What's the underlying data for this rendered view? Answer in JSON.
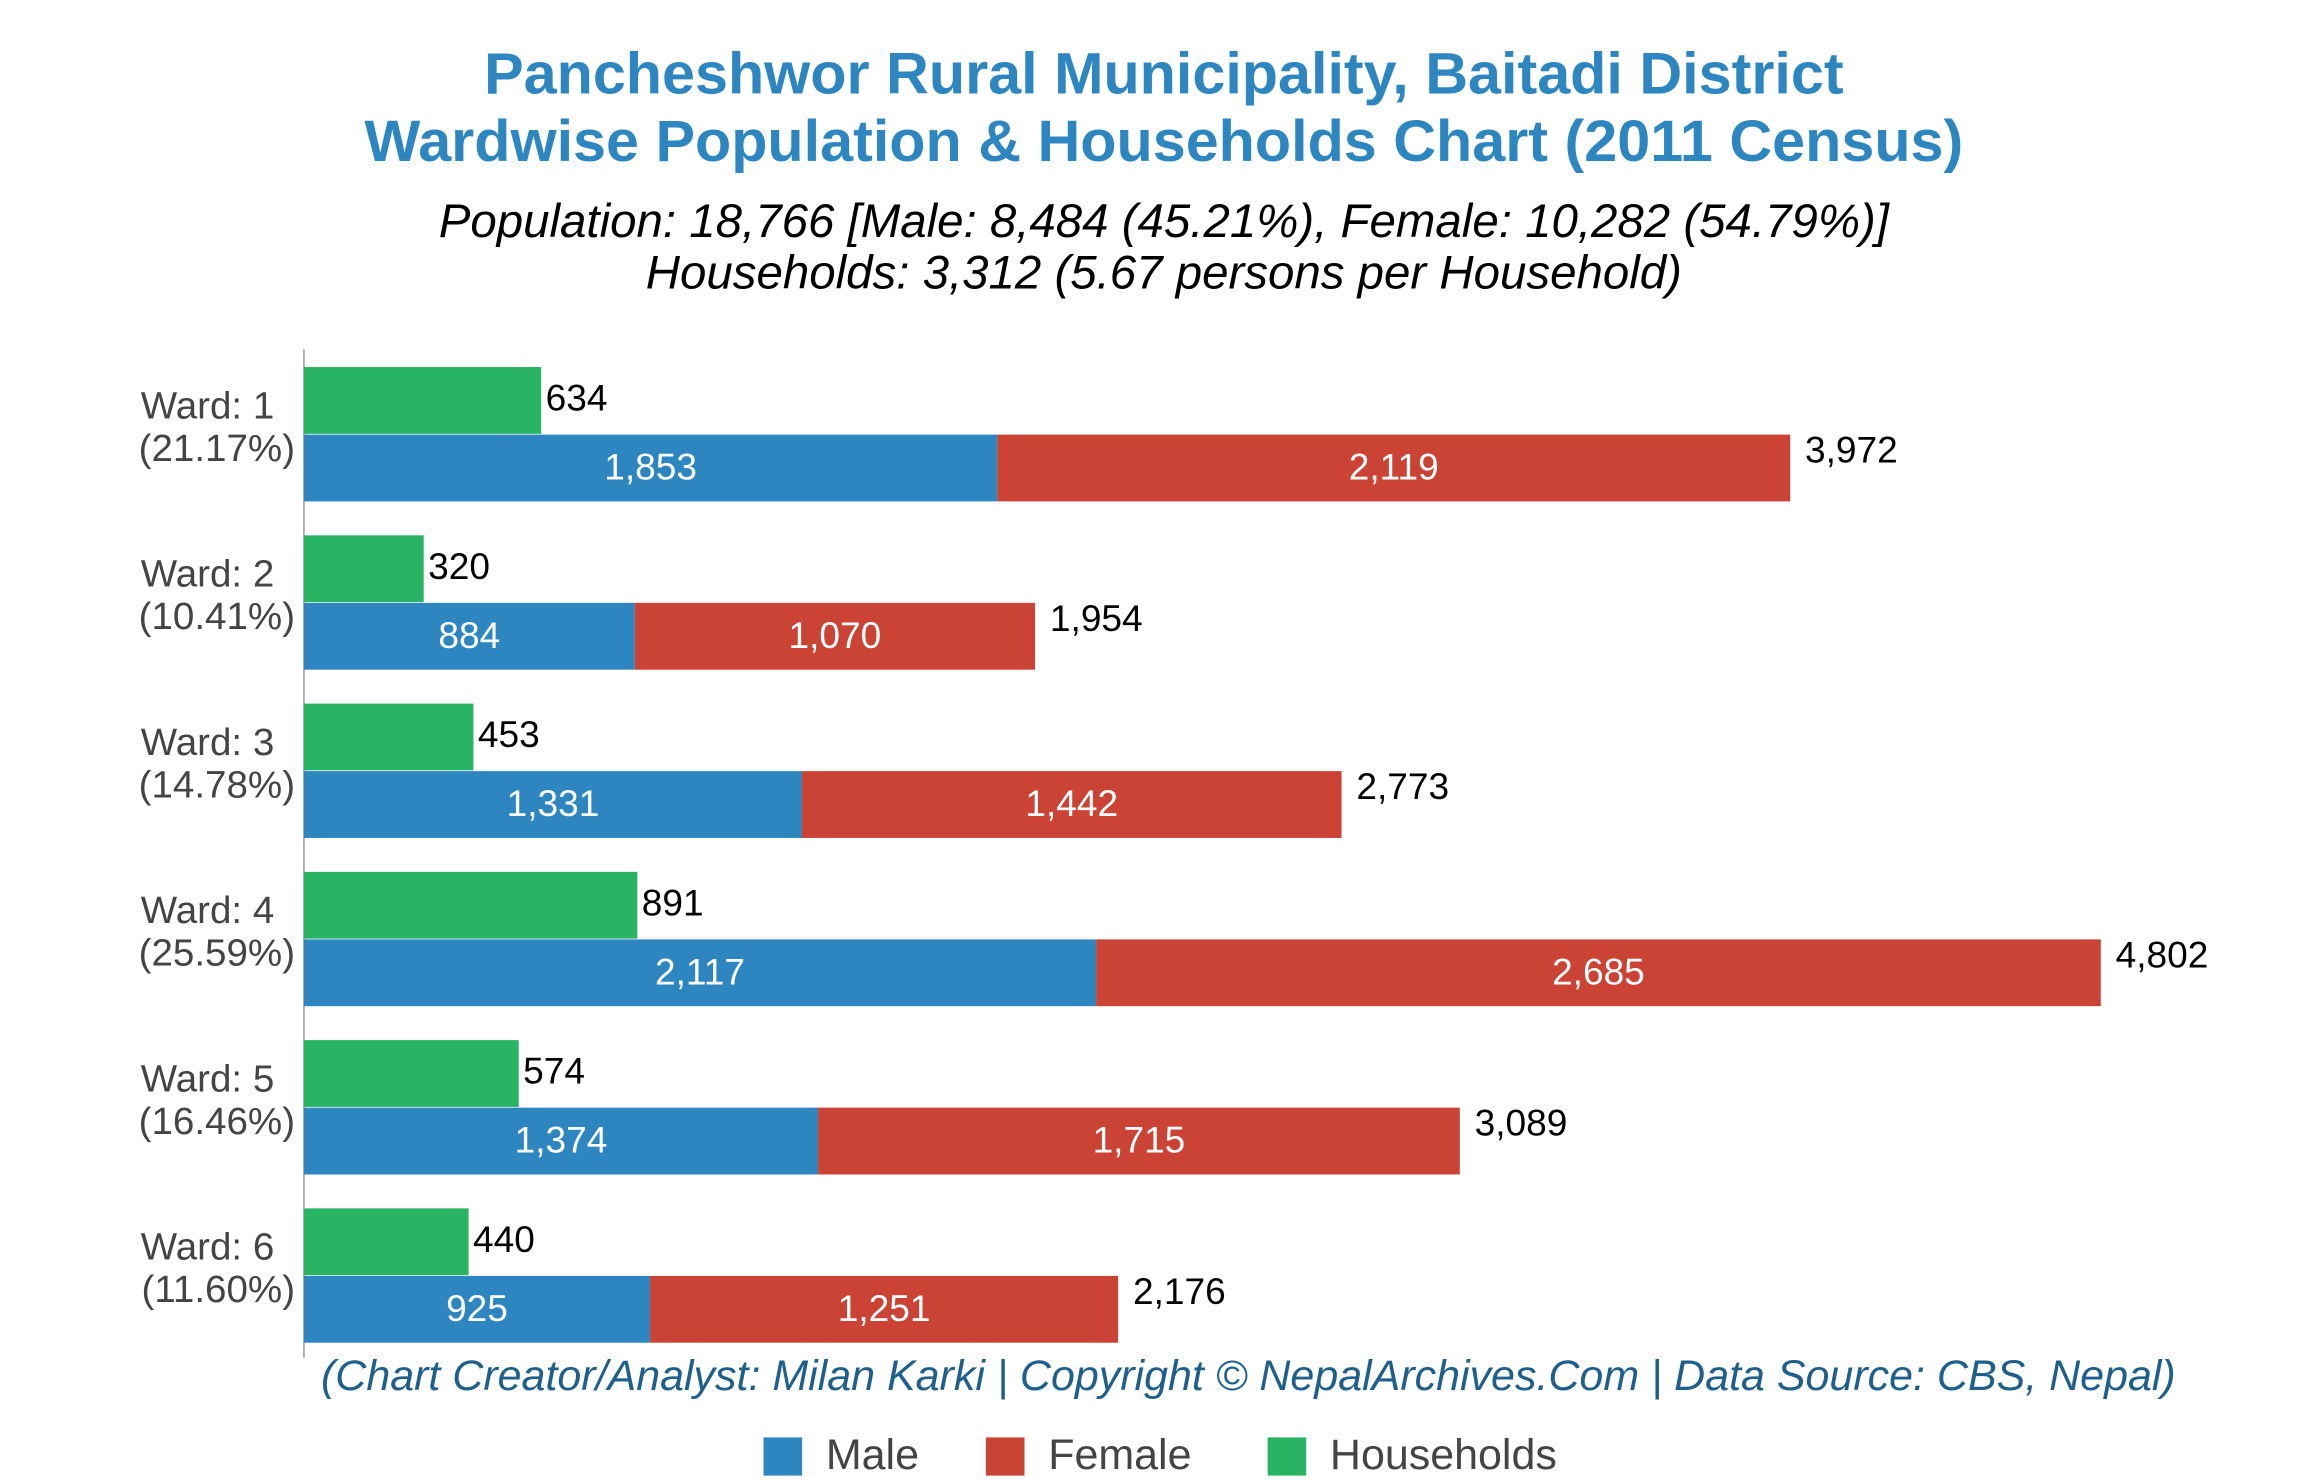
{
  "chart_data": {
    "type": "stacked_hbar_grouped",
    "title": "Pancheshwor Rural Municipality, Baitadi District",
    "title_line2": "Wardwise Population & Households Chart (2011 Census)",
    "subtitle": "Population: 18,766 [Male: 8,484 (45.21%), Female: 10,282 (54.79%)]",
    "subtitle_line2": "Households: 3,312 (5.67 persons per Household)",
    "footer": "(Chart Creator/Analyst: Milan Karki | Copyright © NepalArchives.Com | Data Source: CBS, Nepal)",
    "categories": [
      "Ward: 1",
      "Ward: 2",
      "Ward: 3",
      "Ward: 4",
      "Ward: 5",
      "Ward: 6"
    ],
    "category_shares": [
      "(21.17%)",
      "(10.41%)",
      "(14.78%)",
      "(25.59%)",
      "(16.46%)",
      "(11.60%)"
    ],
    "series": [
      {
        "name": "Male",
        "color": "#2e86c1",
        "stack": "population",
        "values": [
          1853,
          884,
          1331,
          2117,
          1374,
          925
        ],
        "value_labels": [
          "1,853",
          "884",
          "1,331",
          "2,117",
          "1,374",
          "925"
        ]
      },
      {
        "name": "Female",
        "color": "#cb4335",
        "stack": "population",
        "values": [
          2119,
          1070,
          1442,
          2685,
          1715,
          1251
        ],
        "value_labels": [
          "2,119",
          "1,070",
          "1,442",
          "2,685",
          "1,715",
          "1,251"
        ]
      },
      {
        "name": "Households",
        "color": "#28b463",
        "stack": "households",
        "values": [
          634,
          320,
          453,
          891,
          574,
          440
        ],
        "value_labels": [
          "634",
          "320",
          "453",
          "891",
          "574",
          "440"
        ]
      }
    ],
    "totals": {
      "values": [
        3972,
        1954,
        2773,
        4802,
        3089,
        2176
      ],
      "value_labels": [
        "3,972",
        "1,954",
        "2,773",
        "4,802",
        "3,089",
        "2,176"
      ]
    },
    "xlim": [
      0,
      5250
    ],
    "legend": "bottom"
  }
}
